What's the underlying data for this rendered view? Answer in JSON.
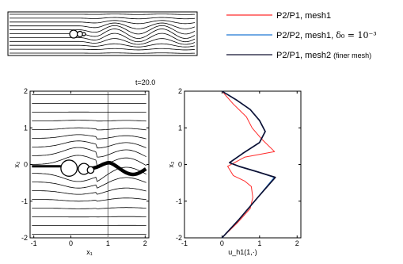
{
  "time_label": "t=20.0",
  "legend": [
    {
      "text": "P2/P1, mesh1",
      "color": "#ff2a2a"
    },
    {
      "text": "P2/P2, mesh1, ",
      "math": "δ₀ = 10⁻³",
      "color": "#1f77d4"
    },
    {
      "text": "P2/P1, mesh2 ",
      "small": "(finer mesh)",
      "color": "#101030"
    }
  ],
  "chart_data": [
    {
      "type": "streamline",
      "title": "",
      "xlabel": "x₁",
      "ylabel": "x₂",
      "xlim": [
        -1.1,
        2.1
      ],
      "ylim": [
        -2,
        2
      ],
      "xticks": [
        "-1",
        "0",
        "1",
        "2"
      ],
      "yticks": [
        "-2",
        "-1",
        "0",
        "1",
        "2"
      ],
      "vertical_line_x": 1,
      "particles": [
        {
          "cx": -0.05,
          "cy": -0.1,
          "r": 0.22
        },
        {
          "cx": 0.35,
          "cy": -0.12,
          "r": 0.15
        },
        {
          "cx": 0.53,
          "cy": -0.15,
          "r": 0.09
        }
      ],
      "color": "#000000"
    },
    {
      "type": "line",
      "title": "",
      "xlabel": "u_h1(1,·)",
      "ylabel": "x₂",
      "xlim": [
        -1,
        2.1
      ],
      "ylim": [
        -2,
        2
      ],
      "xticks": [
        "-1",
        "0",
        "1",
        "2"
      ],
      "yticks": [
        "-2",
        "-1",
        "0",
        "1",
        "2"
      ],
      "series": [
        {
          "name": "P2/P1, mesh1",
          "color": "#ff2a2a",
          "x": [
            0,
            0.4,
            0.75,
            0.82,
            0.78,
            0.6,
            0.3,
            0.15,
            0.6,
            1.4,
            1.05,
            0.8,
            0.65,
            0.3,
            0
          ],
          "y": [
            -2,
            -1.6,
            -1.2,
            -0.9,
            -0.6,
            -0.45,
            -0.3,
            -0.05,
            0.2,
            0.35,
            0.7,
            1.0,
            1.3,
            1.65,
            2
          ]
        },
        {
          "name": "P2/P2, mesh1, δ₀ = 10⁻³",
          "color": "#1f77d4",
          "x": [
            0,
            0.45,
            0.95,
            1.4,
            0.95,
            0.45,
            0.2,
            0.55,
            1.0,
            1.15,
            1.0,
            0.75,
            0.4,
            0
          ],
          "y": [
            -2,
            -1.5,
            -0.9,
            -0.35,
            -0.2,
            -0.05,
            0.05,
            0.3,
            0.6,
            0.9,
            1.2,
            1.5,
            1.75,
            2
          ]
        },
        {
          "name": "P2/P1, mesh2 (finer mesh)",
          "color": "#101030",
          "x": [
            0,
            0.45,
            0.95,
            1.42,
            0.95,
            0.45,
            0.2,
            0.55,
            1.0,
            1.15,
            1.0,
            0.75,
            0.4,
            0
          ],
          "y": [
            -2,
            -1.5,
            -0.9,
            -0.35,
            -0.2,
            -0.05,
            0.05,
            0.3,
            0.6,
            0.9,
            1.2,
            1.5,
            1.75,
            2
          ]
        }
      ]
    }
  ]
}
